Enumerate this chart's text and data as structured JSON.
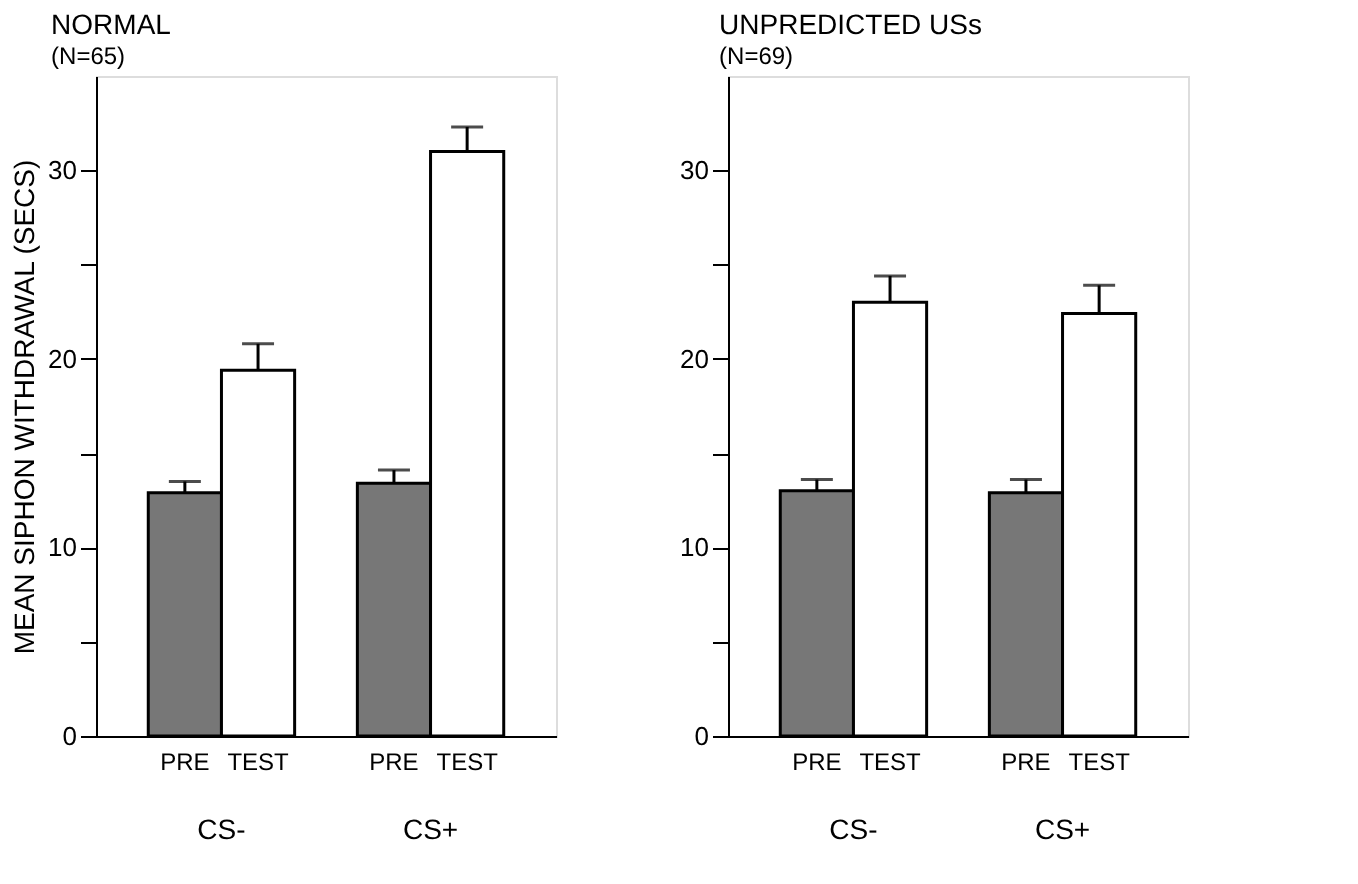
{
  "chart_data": [
    {
      "type": "bar",
      "title": "NORMAL",
      "subtitle": "(N=65)",
      "ylabel": "MEAN SIPHON WITHDRAWAL (SECS)",
      "categories": [
        "CS-",
        "CS+"
      ],
      "series": [
        {
          "name": "PRE",
          "color": "#777777",
          "values": [
            12.9,
            13.4
          ],
          "errors": [
            [
              12.9,
              13.5
            ],
            [
              13.4,
              14.1
            ]
          ]
        },
        {
          "name": "TEST",
          "color": "#ffffff",
          "values": [
            19.4,
            31.0
          ],
          "errors": [
            [
              19.4,
              20.8
            ],
            [
              31.0,
              32.3
            ]
          ]
        }
      ],
      "ylim": [
        0,
        35
      ],
      "yticks": [
        0,
        {
          "value": 5,
          "label": null
        },
        10,
        {
          "value": 15,
          "label": null
        },
        20,
        {
          "value": 25,
          "label": null
        },
        30
      ],
      "grid": false,
      "legend": false
    },
    {
      "type": "bar",
      "title": "UNPREDICTED USs",
      "subtitle": "(N=69)",
      "categories": [
        "CS-",
        "CS+"
      ],
      "series": [
        {
          "name": "PRE",
          "color": "#777777",
          "values": [
            13.0,
            12.9
          ],
          "errors": [
            [
              13.0,
              13.6
            ],
            [
              12.9,
              13.6
            ]
          ]
        },
        {
          "name": "TEST",
          "color": "#ffffff",
          "values": [
            23.0,
            22.4
          ],
          "errors": [
            [
              23.0,
              24.4
            ],
            [
              22.4,
              23.9
            ]
          ]
        }
      ],
      "ylim": [
        0,
        35
      ],
      "yticks": [
        0,
        {
          "value": 5,
          "label": null
        },
        10,
        {
          "value": 15,
          "label": null
        },
        20,
        {
          "value": 25,
          "label": null
        },
        30
      ],
      "grid": false,
      "legend": false
    }
  ]
}
